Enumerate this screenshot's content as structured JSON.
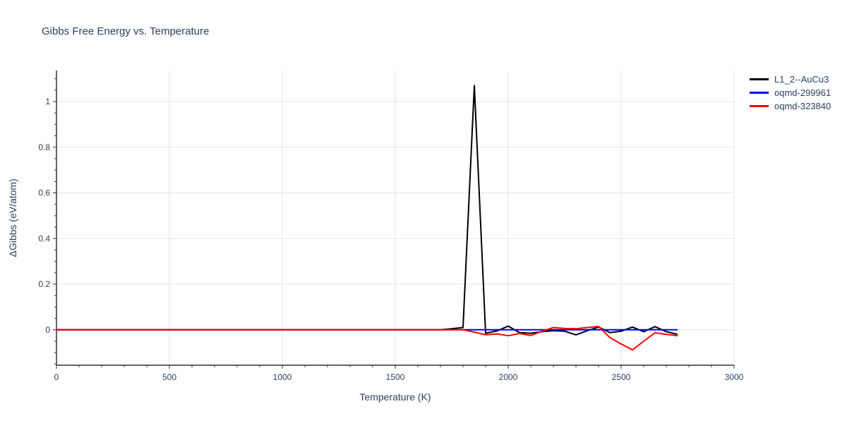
{
  "page": {
    "background": "#ffffff"
  },
  "chart_data": {
    "type": "line",
    "title": "Gibbs Free Energy vs. Temperature",
    "xlabel": "Temperature (K)",
    "ylabel": "ΔGibbs (eV/atom)",
    "xlim": [
      0,
      3000
    ],
    "ylim": [
      -0.155,
      1.136
    ],
    "xticks": [
      0,
      500,
      1000,
      1500,
      2000,
      2500,
      3000
    ],
    "yticks": [
      0,
      0.2,
      0.4,
      0.6,
      0.8,
      1
    ],
    "x_minor_step": 100,
    "y_minor_step": 0.05,
    "grid": true,
    "legend_position": "top-right-outside",
    "colors": {
      "grid": "#e5e5e5",
      "axis": "#333333",
      "text": "#2a3f5f",
      "background": "#ffffff"
    },
    "x": [
      0,
      50,
      100,
      150,
      200,
      250,
      300,
      350,
      400,
      450,
      500,
      550,
      600,
      650,
      700,
      750,
      800,
      850,
      900,
      950,
      1000,
      1050,
      1100,
      1150,
      1200,
      1250,
      1300,
      1350,
      1400,
      1450,
      1500,
      1550,
      1600,
      1650,
      1700,
      1750,
      1800,
      1850,
      1900,
      1950,
      2000,
      2050,
      2100,
      2150,
      2200,
      2250,
      2300,
      2350,
      2400,
      2450,
      2500,
      2550,
      2600,
      2650,
      2700,
      2750
    ],
    "series": [
      {
        "name": "L1_2--AuCu3",
        "color": "#000000",
        "values": [
          0,
          0,
          0,
          0,
          0,
          0,
          0,
          0,
          0,
          0,
          0,
          0,
          0,
          0,
          0,
          0,
          0,
          0,
          0,
          0,
          0,
          0,
          0,
          0,
          0,
          0,
          0,
          0,
          0,
          0,
          0,
          0,
          0,
          0,
          0,
          0.005,
          0.01,
          1.07,
          -0.015,
          -0.005,
          0.016,
          -0.012,
          -0.015,
          -0.008,
          -0.004,
          -0.006,
          -0.022,
          -0.004,
          0.012,
          -0.012,
          -0.006,
          0.012,
          -0.008,
          0.014,
          -0.008,
          -0.02
        ]
      },
      {
        "name": "oqmd-299961",
        "color": "#0000ff",
        "values": [
          0,
          0,
          0,
          0,
          0,
          0,
          0,
          0,
          0,
          0,
          0,
          0,
          0,
          0,
          0,
          0,
          0,
          0,
          0,
          0,
          0,
          0,
          0,
          0,
          0,
          0,
          0,
          0,
          0,
          0,
          0,
          0,
          0,
          0,
          0,
          0,
          0,
          0,
          0,
          0,
          0,
          0,
          0,
          0,
          0,
          0,
          0,
          0,
          0,
          0,
          0,
          0,
          0,
          0,
          0,
          0
        ]
      },
      {
        "name": "oqmd-323840",
        "color": "#ff0000",
        "values": [
          0,
          0,
          0,
          0,
          0,
          0,
          0,
          0,
          0,
          0,
          0,
          0,
          0,
          0,
          0,
          0,
          0,
          0,
          0,
          0,
          0,
          0,
          0,
          0,
          0,
          0,
          0,
          0,
          0,
          0,
          0,
          0,
          0,
          0,
          0,
          0,
          0,
          -0.01,
          -0.022,
          -0.018,
          -0.026,
          -0.016,
          -0.025,
          -0.006,
          0.01,
          0.006,
          0.005,
          0.01,
          0.015,
          -0.034,
          -0.062,
          -0.088,
          -0.05,
          -0.013,
          -0.02,
          -0.026
        ]
      }
    ]
  }
}
